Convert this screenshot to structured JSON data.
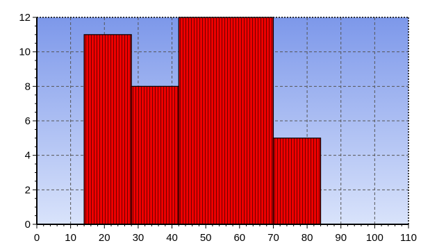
{
  "chart_data": {
    "type": "bar",
    "title": "",
    "xlabel": "",
    "ylabel": "",
    "xlim": [
      0,
      110
    ],
    "ylim": [
      0,
      12
    ],
    "x_ticks": [
      "0",
      "10",
      "20",
      "30",
      "40",
      "50",
      "60",
      "70",
      "80",
      "90",
      "100",
      "110"
    ],
    "y_ticks": [
      "0",
      "2",
      "4",
      "6",
      "8",
      "10",
      "12"
    ],
    "grid": true,
    "legend": "none",
    "bins": [
      {
        "start": 14,
        "end": 28,
        "value": 11
      },
      {
        "start": 28,
        "end": 42,
        "value": 8
      },
      {
        "start": 42,
        "end": 70,
        "value": 12
      },
      {
        "start": 70,
        "end": 84,
        "value": 5
      }
    ],
    "colors": {
      "bar_fill": "#ee0000",
      "bar_stripe": "#6e0000",
      "bar_edge": "#000000",
      "plot_bg_top": "#7d98ea",
      "plot_bg_bottom": "#d9e3fb",
      "grid": "#555555",
      "axis": "#000000"
    }
  }
}
